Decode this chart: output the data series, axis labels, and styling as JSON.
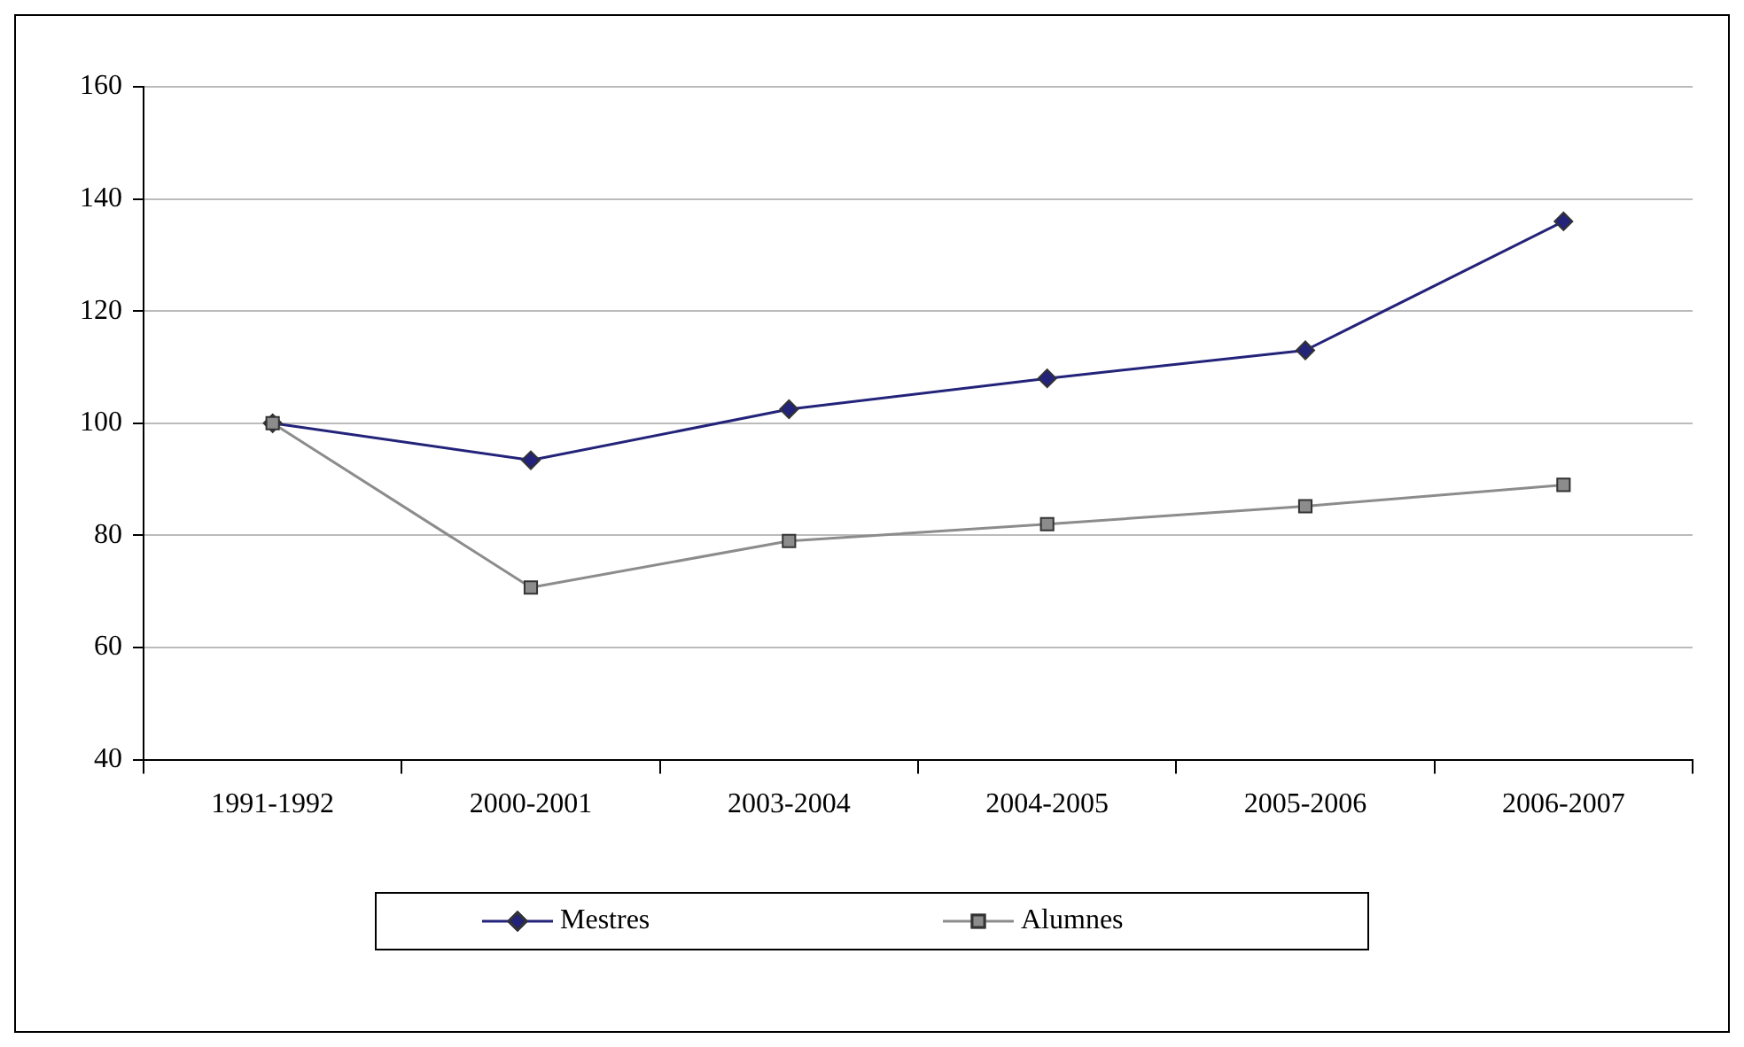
{
  "chart_data": {
    "type": "line",
    "categories": [
      "1991-1992",
      "2000-2001",
      "2003-2004",
      "2004-2005",
      "2005-2006",
      "2006-2007"
    ],
    "series": [
      {
        "name": "Mestres",
        "color": "#23237a",
        "marker": "diamond",
        "values": [
          100,
          93.4,
          102.5,
          108,
          113,
          136
        ]
      },
      {
        "name": "Alumnes",
        "color": "#8c8c8c",
        "marker": "square",
        "values": [
          100,
          70.7,
          79,
          82,
          85.2,
          89
        ]
      }
    ],
    "ylim": [
      40,
      160
    ],
    "yticks": [
      40,
      60,
      80,
      100,
      120,
      140,
      160
    ],
    "grid": "y",
    "legend": "bottom",
    "line_style": "solid"
  }
}
